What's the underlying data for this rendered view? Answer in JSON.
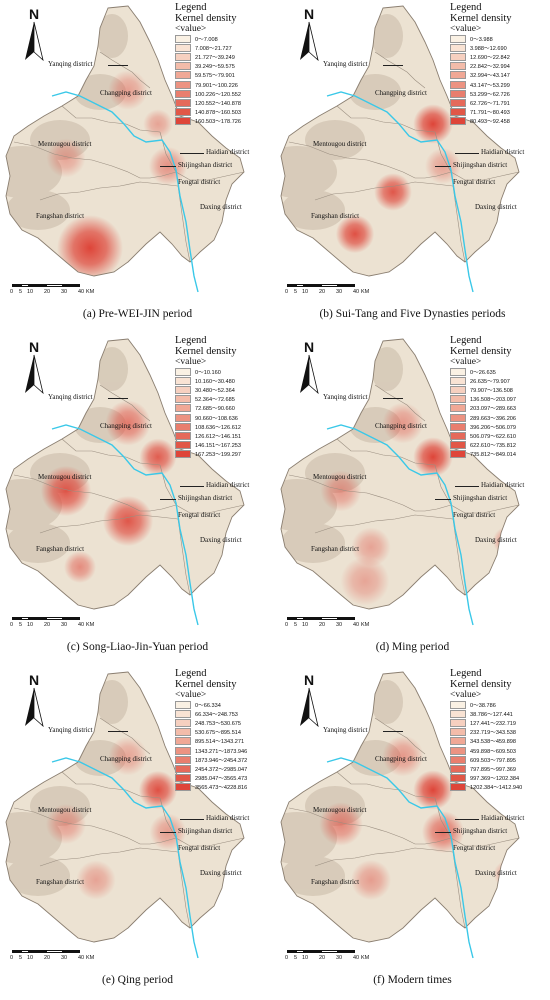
{
  "legend": {
    "title": "Legend",
    "subtitle": "Kernel density",
    "value_label": "<value>"
  },
  "ramp": [
    "#faf1e4",
    "#f9e3d4",
    "#f6d0c0",
    "#f3bcaa",
    "#f0a896",
    "#ec9382",
    "#e97e6e",
    "#e56a5b",
    "#e15747",
    "#de4539"
  ],
  "districts": {
    "yanqing": "Yanqing district",
    "changping": "Changping district",
    "mentougou": "Mentougou district",
    "haidian": "Haidian district",
    "shijingshan": "Shijingshan district",
    "fengtai": "Fengtai district",
    "fangshan": "Fangshan district",
    "daxing": "Daxing district"
  },
  "scale": {
    "ticks": [
      "0",
      "5",
      "10",
      "20",
      "30",
      "40"
    ],
    "unit": "KM"
  },
  "colors": {
    "river": "#3ac8e8",
    "boundary": "#9a8e80",
    "base": "#ece2d2",
    "terrain": "#c8b9a6"
  },
  "panels": [
    {
      "caption": "(a) Pre-WEI-JIN period",
      "legend_entries": [
        "0～7.008",
        "7.008～21.727",
        "21.727～39.249",
        "39.249～59.575",
        "59.575～79.901",
        "79.901～100.226",
        "100.226～120.552",
        "120.552～140.878",
        "140.878～160.503",
        "160.503～178.726"
      ],
      "hotspots": [
        {
          "area": "Fangshan south",
          "intensity": 1.0
        },
        {
          "area": "Fengtai",
          "intensity": 0.35
        },
        {
          "area": "Changping",
          "intensity": 0.22
        },
        {
          "area": "Mentougou",
          "intensity": 0.18
        },
        {
          "area": "Haidian",
          "intensity": 0.2
        }
      ]
    },
    {
      "caption": "(b)  Sui-Tang and Five Dynasties periods",
      "legend_entries": [
        "0～3.988",
        "3.988～12.690",
        "12.690～22.842",
        "22.842～32.994",
        "32.994～43.147",
        "43.147～53.299",
        "53.299～62.726",
        "62.726～71.791",
        "71.791～80.493",
        "80.493～92.458"
      ],
      "hotspots": [
        {
          "area": "Haidian",
          "intensity": 1.0
        },
        {
          "area": "Fangshan west",
          "intensity": 0.9
        },
        {
          "area": "Fangshan centre",
          "intensity": 0.85
        },
        {
          "area": "Fengtai",
          "intensity": 0.2
        }
      ]
    },
    {
      "caption": "(c)  Song-Liao-Jin-Yuan period",
      "legend_entries": [
        "0～10.160",
        "10.160～30.480",
        "30.480～52.364",
        "52.364～72.685",
        "72.685～90.660",
        "90.660～108.636",
        "108.636～126.612",
        "126.612～146.151",
        "146.151～167.253",
        "167.253～199.297"
      ],
      "hotspots": [
        {
          "area": "Mentougou",
          "intensity": 0.85
        },
        {
          "area": "Fengtai west",
          "intensity": 0.85
        },
        {
          "area": "Haidian",
          "intensity": 0.8
        },
        {
          "area": "Changping",
          "intensity": 0.55
        },
        {
          "area": "Fangshan west",
          "intensity": 0.4
        }
      ]
    },
    {
      "caption": "(d)  Ming period",
      "legend_entries": [
        "0～26.635",
        "26.635～79.907",
        "79.907～136.508",
        "136.508～203.097",
        "203.097～289.663",
        "289.663～396.206",
        "396.206～506.079",
        "506.079～622.610",
        "622.610～735.812",
        "735.812～849.014"
      ],
      "hotspots": [
        {
          "area": "Haidian",
          "intensity": 1.0
        },
        {
          "area": "Daxing",
          "intensity": 0.4
        },
        {
          "area": "Mentougou",
          "intensity": 0.3
        },
        {
          "area": "Changping",
          "intensity": 0.3
        },
        {
          "area": "Fangshan",
          "intensity": 0.2
        },
        {
          "area": "Fangshan south",
          "intensity": 0.18
        }
      ]
    },
    {
      "caption": "(e)  Qing period",
      "legend_entries": [
        "0～66.334",
        "66.334～248.753",
        "248.753～530.675",
        "530.675～895.514",
        "895.514～1343.271",
        "1343.271～1873.946",
        "1873.946～2454.372",
        "2454.372～2985.047",
        "2985.047～3565.473",
        "3565.473～4228.816"
      ],
      "hotspots": [
        {
          "area": "Haidian",
          "intensity": 0.9
        },
        {
          "area": "Mentougou",
          "intensity": 0.25
        },
        {
          "area": "Fengtai",
          "intensity": 0.25
        },
        {
          "area": "Fangshan",
          "intensity": 0.2
        },
        {
          "area": "Changping",
          "intensity": 0.18
        }
      ]
    },
    {
      "caption": "(f)  Modern times",
      "legend_entries": [
        "0～38.786",
        "38.786～127.441",
        "127.441～232.719",
        "232.719～343.538",
        "343.538～459.898",
        "459.898～609.503",
        "609.503～797.895",
        "797.895～997.369",
        "997.369～1202.384",
        "1202.384～1412.940"
      ],
      "hotspots": [
        {
          "area": "Haidian",
          "intensity": 1.0
        },
        {
          "area": "Fengtai",
          "intensity": 0.6
        },
        {
          "area": "Mentougou",
          "intensity": 0.45
        },
        {
          "area": "Changping",
          "intensity": 0.3
        },
        {
          "area": "Fangshan",
          "intensity": 0.25
        },
        {
          "area": "Daxing",
          "intensity": 0.25
        }
      ]
    }
  ]
}
